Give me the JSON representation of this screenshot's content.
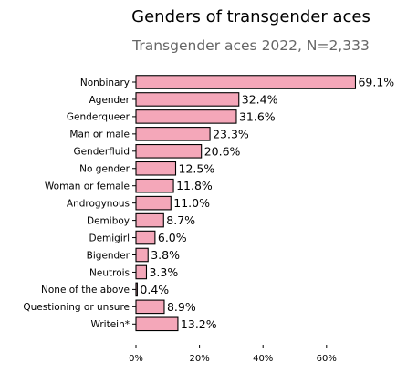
{
  "chart_data": {
    "type": "bar",
    "orientation": "horizontal",
    "title": "Genders of transgender aces",
    "subtitle": "Transgender aces 2022, N=2,333",
    "xlabel": "",
    "ylabel": "",
    "categories": [
      "Nonbinary",
      "Agender",
      "Genderqueer",
      "Man or male",
      "Genderfluid",
      "No gender",
      "Woman or female",
      "Androgynous",
      "Demiboy",
      "Demigirl",
      "Bigender",
      "Neutrois",
      "None of the above",
      "Questioning or unsure",
      "Writein*"
    ],
    "values": [
      69.1,
      32.4,
      31.6,
      23.3,
      20.6,
      12.5,
      11.8,
      11.0,
      8.7,
      6.0,
      3.8,
      3.3,
      0.4,
      8.9,
      13.2
    ],
    "value_labels": [
      "69.1%",
      "32.4%",
      "31.6%",
      "23.3%",
      "20.6%",
      "12.5%",
      "11.8%",
      "11.0%",
      "8.7%",
      "6.0%",
      "3.8%",
      "3.3%",
      "0.4%",
      "8.9%",
      "13.2%"
    ],
    "xticks": [
      0,
      20,
      40,
      60
    ],
    "xtick_labels": [
      "0%",
      "20%",
      "40%",
      "60%"
    ],
    "xlim": [
      0,
      70
    ],
    "grid": false,
    "bar_color": "#f4a7b9",
    "edge_color": "#000000"
  }
}
